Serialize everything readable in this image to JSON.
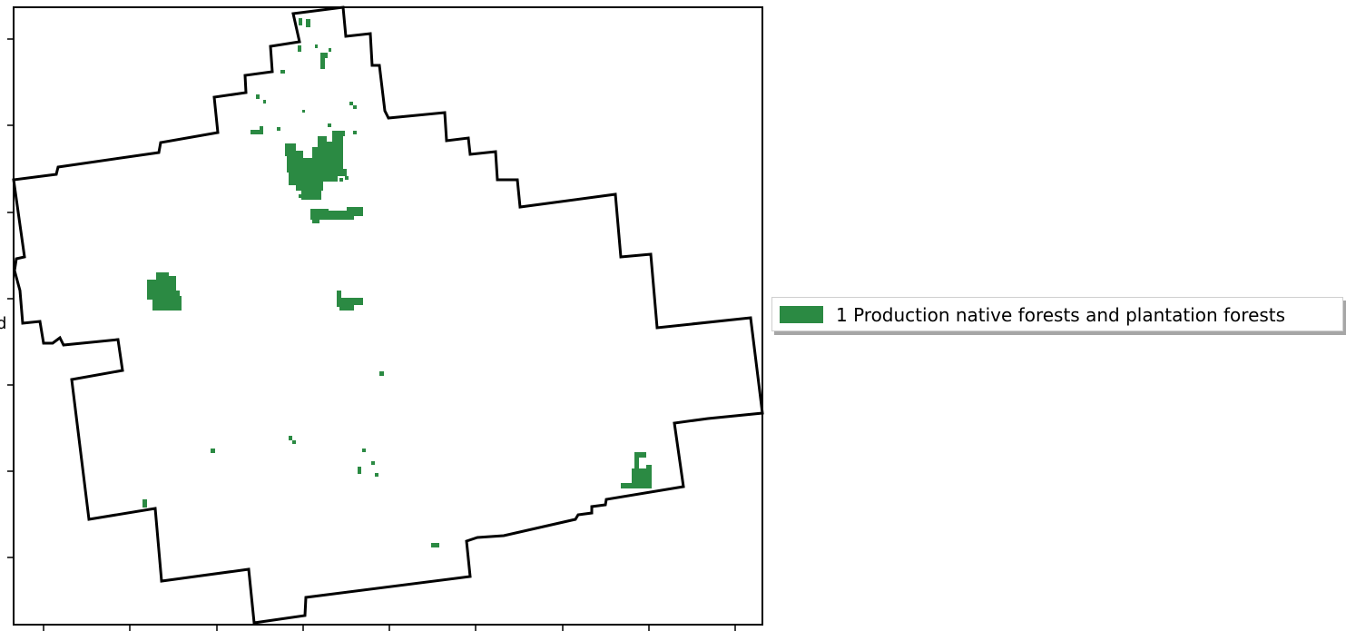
{
  "map": {
    "legend": {
      "items": [
        {
          "label": "1 Production native forests and plantation forests",
          "color": "#2b8a43"
        }
      ]
    },
    "ylabel_fragment": "d",
    "boundary_color": "#000000",
    "forest_color": "#2b8a43"
  }
}
